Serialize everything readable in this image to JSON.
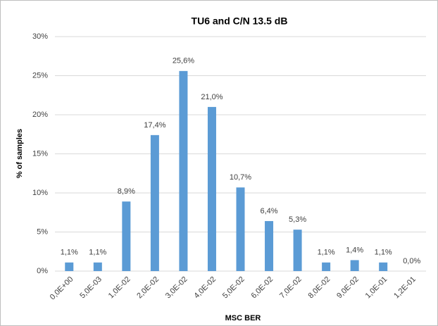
{
  "chart_data": {
    "type": "bar",
    "title": "TU6 and C/N 13.5 dB",
    "x_label": "MSC BER",
    "y_label": "% of samples",
    "categories": [
      "0,0E+00",
      "5,0E-03",
      "1,0E-02",
      "2,0E-02",
      "3,0E-02",
      "4,0E-02",
      "5,0E-02",
      "6,0E-02",
      "7,0E-02",
      "8,0E-02",
      "9,0E-02",
      "1,0E-01",
      "1,2E-01"
    ],
    "values": [
      1.1,
      1.1,
      8.9,
      17.4,
      25.6,
      21.0,
      10.7,
      6.4,
      5.3,
      1.1,
      1.4,
      1.1,
      0.0
    ],
    "value_labels": [
      "1,1%",
      "1,1%",
      "8,9%",
      "17,4%",
      "25,6%",
      "21,0%",
      "10,7%",
      "6,4%",
      "5,3%",
      "1,1%",
      "1,4%",
      "1,1%",
      "0,0%"
    ],
    "color": "#5b9bd5",
    "ylim": [
      0,
      30
    ],
    "yticks": [
      {
        "value": 0,
        "label": "0%"
      },
      {
        "value": 5,
        "label": "5%"
      },
      {
        "value": 10,
        "label": "10%"
      },
      {
        "value": 15,
        "label": "15%"
      },
      {
        "value": 20,
        "label": "20%"
      },
      {
        "value": 25,
        "label": "25%"
      },
      {
        "value": 30,
        "label": "30%"
      }
    ],
    "grid": true
  }
}
